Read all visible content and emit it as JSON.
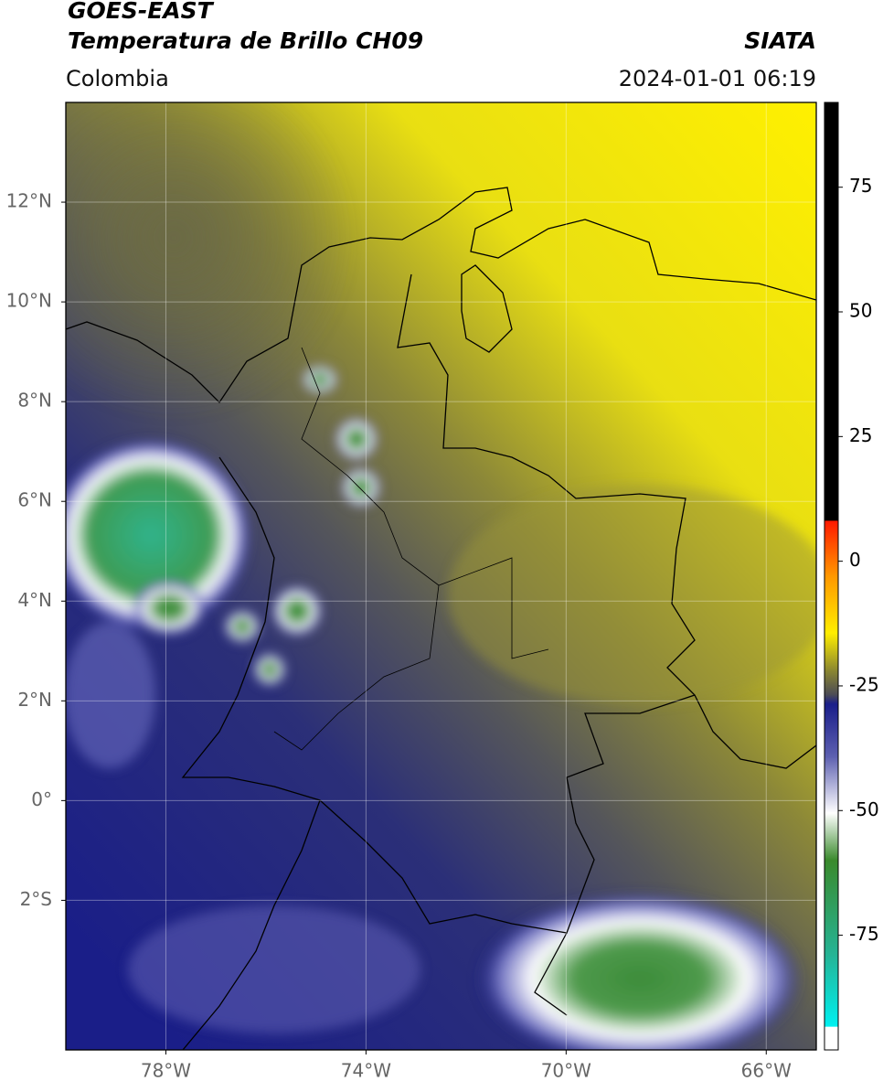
{
  "header": {
    "title": "GOES-EAST",
    "subtitle": "Temperatura de Brillo CH09",
    "source": "SIATA",
    "region": "Colombia",
    "datetime": "2024-01-01 06:19"
  },
  "map": {
    "lonlim": [
      -80,
      -65
    ],
    "latlim": [
      -5,
      14
    ],
    "lon_ticks": [
      {
        "value": -78,
        "label": "78°W"
      },
      {
        "value": -74,
        "label": "74°W"
      },
      {
        "value": -70,
        "label": "70°W"
      },
      {
        "value": -66,
        "label": "66°W"
      }
    ],
    "lat_ticks": [
      {
        "value": 12,
        "label": "12°N"
      },
      {
        "value": 10,
        "label": "10°N"
      },
      {
        "value": 8,
        "label": "8°N"
      },
      {
        "value": 6,
        "label": "6°N"
      },
      {
        "value": 4,
        "label": "4°N"
      },
      {
        "value": 2,
        "label": "2°N"
      },
      {
        "value": 0,
        "label": "0°"
      },
      {
        "value": -2,
        "label": "2°S"
      }
    ],
    "grid": true
  },
  "colorbar": {
    "lim": [
      -98,
      92
    ],
    "ticks": [
      75,
      50,
      25,
      0,
      -25,
      -50,
      -75
    ]
  }
}
